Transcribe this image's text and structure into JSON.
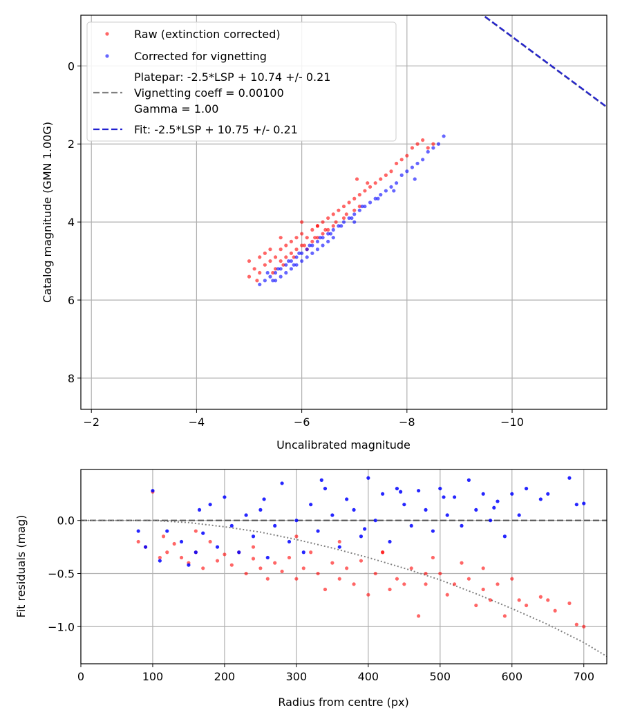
{
  "chart_data": [
    {
      "type": "scatter",
      "xlabel": "Uncalibrated magnitude",
      "ylabel": "Catalog magnitude (GMN 1.00G)",
      "xlim": [
        -1.8,
        -11.8
      ],
      "ylim": [
        8.8,
        -1.3
      ],
      "x_inverted": true,
      "y_inverted": true,
      "grid": true,
      "legend_position": "upper-left",
      "xticks": [
        -2,
        -4,
        -6,
        -8,
        -10
      ],
      "xtick_labels": [
        "−2",
        "−4",
        "−6",
        "−8",
        "−10"
      ],
      "yticks": [
        0,
        2,
        4,
        6,
        8
      ],
      "ytick_labels": [
        "0",
        "2",
        "4",
        "6",
        "8"
      ],
      "legend": [
        {
          "label": "Raw (extinction corrected)",
          "kind": "marker",
          "color": "#ff0000"
        },
        {
          "label": "Corrected for vignetting",
          "kind": "marker",
          "color": "#0000ff"
        },
        {
          "label": "Platepar: -2.5*LSP + 10.74 +/- 0.21",
          "kind": "dash",
          "color": "#808080"
        },
        {
          "label": "Vignetting coeff = 0.00100",
          "kind": "text"
        },
        {
          "label": "Gamma = 1.00",
          "kind": "text"
        },
        {
          "label": "Fit: -2.5*LSP + 10.75 +/- 0.21",
          "kind": "dash",
          "color": "#2020d0"
        }
      ],
      "lines": [
        {
          "name": "Platepar",
          "slope": -1,
          "intercept": -10.74,
          "color": "#808080",
          "style": "dashed"
        },
        {
          "name": "Fit",
          "slope": -1,
          "intercept": -10.75,
          "color": "#2020d0",
          "style": "dashed"
        }
      ],
      "series": [
        {
          "name": "Raw (extinction corrected)",
          "color": "#ff0000",
          "x": [
            -5.0,
            -5.1,
            -5.2,
            -5.2,
            -5.3,
            -5.3,
            -5.4,
            -5.4,
            -5.5,
            -5.5,
            -5.6,
            -5.6,
            -5.7,
            -5.7,
            -5.8,
            -5.8,
            -5.9,
            -5.9,
            -6.0,
            -6.0,
            -6.1,
            -6.1,
            -6.2,
            -6.2,
            -6.3,
            -6.3,
            -6.4,
            -6.4,
            -6.5,
            -6.5,
            -6.6,
            -6.6,
            -6.7,
            -6.8,
            -6.8,
            -6.9,
            -7.0,
            -7.0,
            -7.1,
            -7.2,
            -7.3,
            -7.4,
            -7.5,
            -7.6,
            -7.7,
            -7.8,
            -7.9,
            -8.0,
            -8.1,
            -8.2,
            -8.3,
            -8.4,
            -8.5,
            -5.0,
            -5.15,
            -5.45,
            -5.65,
            -5.85,
            -6.05,
            -6.25,
            -6.45,
            -6.65,
            -6.85,
            -7.05,
            -7.25,
            -6.0,
            -6.3,
            -5.6,
            -7.1
          ],
          "y": [
            5.0,
            5.2,
            4.9,
            5.3,
            5.1,
            4.8,
            5.0,
            4.7,
            4.9,
            5.2,
            4.7,
            5.0,
            4.6,
            4.9,
            4.5,
            4.8,
            4.4,
            4.7,
            4.3,
            4.6,
            4.4,
            4.7,
            4.2,
            4.5,
            4.1,
            4.4,
            4.0,
            4.3,
            3.9,
            4.2,
            3.8,
            4.1,
            3.7,
            3.6,
            3.9,
            3.5,
            3.4,
            3.7,
            3.3,
            3.2,
            3.1,
            3.0,
            2.9,
            2.8,
            2.7,
            2.5,
            2.4,
            2.3,
            2.1,
            2.0,
            1.9,
            2.1,
            2.0,
            5.4,
            5.5,
            5.3,
            5.1,
            4.9,
            4.6,
            4.4,
            4.2,
            4.0,
            3.8,
            2.9,
            3.0,
            4.0,
            4.1,
            4.4,
            3.6
          ]
        },
        {
          "name": "Corrected for vignetting",
          "color": "#0000ff",
          "x": [
            -5.2,
            -5.3,
            -5.4,
            -5.5,
            -5.5,
            -5.6,
            -5.6,
            -5.7,
            -5.7,
            -5.8,
            -5.8,
            -5.9,
            -5.9,
            -6.0,
            -6.0,
            -6.1,
            -6.1,
            -6.2,
            -6.2,
            -6.3,
            -6.3,
            -6.4,
            -6.4,
            -6.5,
            -6.5,
            -6.6,
            -6.6,
            -6.7,
            -6.8,
            -6.9,
            -7.0,
            -7.0,
            -7.1,
            -7.2,
            -7.3,
            -7.4,
            -7.5,
            -7.6,
            -7.7,
            -7.8,
            -7.9,
            -8.0,
            -8.1,
            -8.2,
            -8.3,
            -8.4,
            -8.5,
            -8.6,
            -8.7,
            -5.35,
            -5.55,
            -5.75,
            -5.95,
            -6.15,
            -6.35,
            -6.55,
            -6.75,
            -6.95,
            -7.15,
            -7.45,
            -7.75,
            -8.15,
            -5.45,
            -5.85
          ],
          "y": [
            5.6,
            5.5,
            5.4,
            5.3,
            5.5,
            5.2,
            5.4,
            5.1,
            5.3,
            5.0,
            5.2,
            4.9,
            5.1,
            4.8,
            5.0,
            4.7,
            4.9,
            4.6,
            4.8,
            4.5,
            4.7,
            4.4,
            4.6,
            4.3,
            4.5,
            4.2,
            4.4,
            4.1,
            4.0,
            3.9,
            3.8,
            4.0,
            3.7,
            3.6,
            3.5,
            3.4,
            3.3,
            3.2,
            3.1,
            3.0,
            2.8,
            2.7,
            2.6,
            2.5,
            2.4,
            2.2,
            2.1,
            2.0,
            1.8,
            5.3,
            5.2,
            5.0,
            4.8,
            4.6,
            4.4,
            4.3,
            4.1,
            3.9,
            3.6,
            3.4,
            3.2,
            2.9,
            5.5,
            5.1
          ]
        }
      ]
    },
    {
      "type": "scatter",
      "xlabel": "Radius from centre (px)",
      "ylabel": "Fit residuals (mag)",
      "xlim": [
        0,
        732
      ],
      "ylim": [
        -1.35,
        0.48
      ],
      "grid": true,
      "xticks": [
        0,
        100,
        200,
        300,
        400,
        500,
        600,
        700
      ],
      "xtick_labels": [
        "0",
        "100",
        "200",
        "300",
        "400",
        "500",
        "600",
        "700"
      ],
      "yticks": [
        0.0,
        -0.5,
        -1.0
      ],
      "ytick_labels": [
        "0.0",
        "−0.5",
        "−1.0"
      ],
      "reference_lines": [
        {
          "name": "zero",
          "y": 0.0,
          "color": "#555555",
          "style": "dashed"
        }
      ],
      "vignetting_curve": {
        "name": "vignetting model",
        "color": "#808080",
        "style": "dotted",
        "x": [
          0,
          100,
          150,
          200,
          250,
          300,
          350,
          400,
          450,
          500,
          550,
          600,
          650,
          700,
          732
        ],
        "y": [
          0.0,
          0.0,
          -0.02,
          -0.06,
          -0.11,
          -0.18,
          -0.26,
          -0.35,
          -0.45,
          -0.56,
          -0.69,
          -0.83,
          -0.98,
          -1.15,
          -1.28
        ]
      },
      "series": [
        {
          "name": "Raw residuals",
          "color": "#ff0000",
          "x": [
            80,
            90,
            100,
            110,
            115,
            120,
            130,
            140,
            150,
            160,
            170,
            180,
            190,
            200,
            210,
            220,
            230,
            240,
            250,
            260,
            270,
            280,
            290,
            300,
            310,
            320,
            330,
            340,
            350,
            360,
            370,
            380,
            390,
            400,
            410,
            420,
            430,
            440,
            450,
            460,
            470,
            480,
            490,
            500,
            510,
            520,
            530,
            540,
            550,
            560,
            570,
            580,
            590,
            600,
            610,
            620,
            640,
            650,
            680,
            690,
            700,
            160,
            240,
            300,
            360,
            420,
            480,
            560,
            660
          ],
          "y": [
            -0.2,
            -0.25,
            0.27,
            -0.35,
            -0.15,
            -0.3,
            -0.22,
            -0.35,
            -0.4,
            -0.3,
            -0.45,
            -0.2,
            -0.38,
            -0.32,
            -0.42,
            -0.3,
            -0.5,
            -0.36,
            -0.45,
            -0.55,
            -0.4,
            -0.48,
            -0.35,
            -0.55,
            -0.45,
            -0.3,
            -0.5,
            -0.65,
            -0.4,
            -0.55,
            -0.45,
            -0.6,
            -0.38,
            -0.7,
            -0.5,
            -0.3,
            -0.65,
            -0.55,
            -0.6,
            -0.45,
            -0.9,
            -0.6,
            -0.35,
            -0.5,
            -0.7,
            -0.6,
            -0.4,
            -0.55,
            -0.8,
            -0.65,
            -0.75,
            -0.6,
            -0.9,
            -0.55,
            -0.75,
            -0.8,
            -0.72,
            -0.75,
            -0.78,
            -0.98,
            -1.0,
            -0.1,
            -0.25,
            -0.15,
            -0.2,
            -0.3,
            -0.5,
            -0.45,
            -0.85
          ]
        },
        {
          "name": "Corrected residuals",
          "color": "#0000ff",
          "x": [
            80,
            90,
            100,
            110,
            120,
            140,
            150,
            160,
            170,
            180,
            190,
            200,
            210,
            220,
            230,
            240,
            250,
            260,
            270,
            280,
            290,
            300,
            310,
            320,
            330,
            340,
            350,
            360,
            370,
            380,
            390,
            400,
            410,
            420,
            430,
            440,
            450,
            460,
            470,
            480,
            490,
            500,
            510,
            520,
            530,
            540,
            550,
            560,
            570,
            580,
            590,
            600,
            610,
            620,
            640,
            650,
            680,
            690,
            700,
            165,
            255,
            335,
            395,
            445,
            505,
            575
          ],
          "y": [
            -0.1,
            -0.25,
            0.28,
            -0.38,
            -0.1,
            -0.2,
            -0.42,
            -0.3,
            -0.12,
            0.15,
            -0.25,
            0.22,
            -0.05,
            -0.3,
            0.05,
            -0.15,
            0.1,
            -0.35,
            -0.05,
            0.35,
            -0.2,
            0.0,
            -0.3,
            0.15,
            -0.1,
            0.3,
            0.05,
            -0.25,
            0.2,
            0.1,
            -0.15,
            0.4,
            0.0,
            0.25,
            -0.2,
            0.3,
            0.15,
            -0.05,
            0.28,
            0.1,
            -0.1,
            0.3,
            0.05,
            0.22,
            -0.05,
            0.38,
            0.1,
            0.25,
            0.0,
            0.18,
            -0.15,
            0.25,
            0.05,
            0.3,
            0.2,
            0.25,
            0.4,
            0.15,
            0.16,
            0.1,
            0.2,
            0.38,
            -0.08,
            0.27,
            0.22,
            0.12
          ]
        }
      ]
    }
  ]
}
